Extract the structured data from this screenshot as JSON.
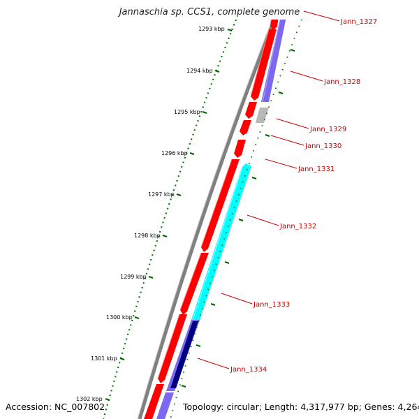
{
  "title": "Jannaschia sp. CCS1, complete genome",
  "footer": {
    "accession": "Accession: NC_007802",
    "topology": "Topology: circular; Length: 4,317,977 bp; Genes: 4,264"
  },
  "scale": {
    "ticks": [
      "1293 kbp",
      "1294 kbp",
      "1295 kbp",
      "1296 kbp",
      "1297 kbp",
      "1298 kbp",
      "1299 kbp",
      "1300 kbp",
      "1301 kbp",
      "1302 kbp"
    ]
  },
  "genes": [
    {
      "label": "Jann_1327"
    },
    {
      "label": "Jann_1328"
    },
    {
      "label": "Jann_1329"
    },
    {
      "label": "Jann_1330"
    },
    {
      "label": "Jann_1331"
    },
    {
      "label": "Jann_1332"
    },
    {
      "label": "Jann_1333"
    },
    {
      "label": "Jann_1334"
    }
  ],
  "colors": {
    "forward": "#ff0000",
    "reverse_blue": "#7b68ee",
    "reverse_cyan": "#00ffff",
    "reverse_navy": "#000080",
    "pseudo": "#b0b0b0",
    "backbone": "#808080",
    "tick": "#008000",
    "label": "#cc0000"
  }
}
